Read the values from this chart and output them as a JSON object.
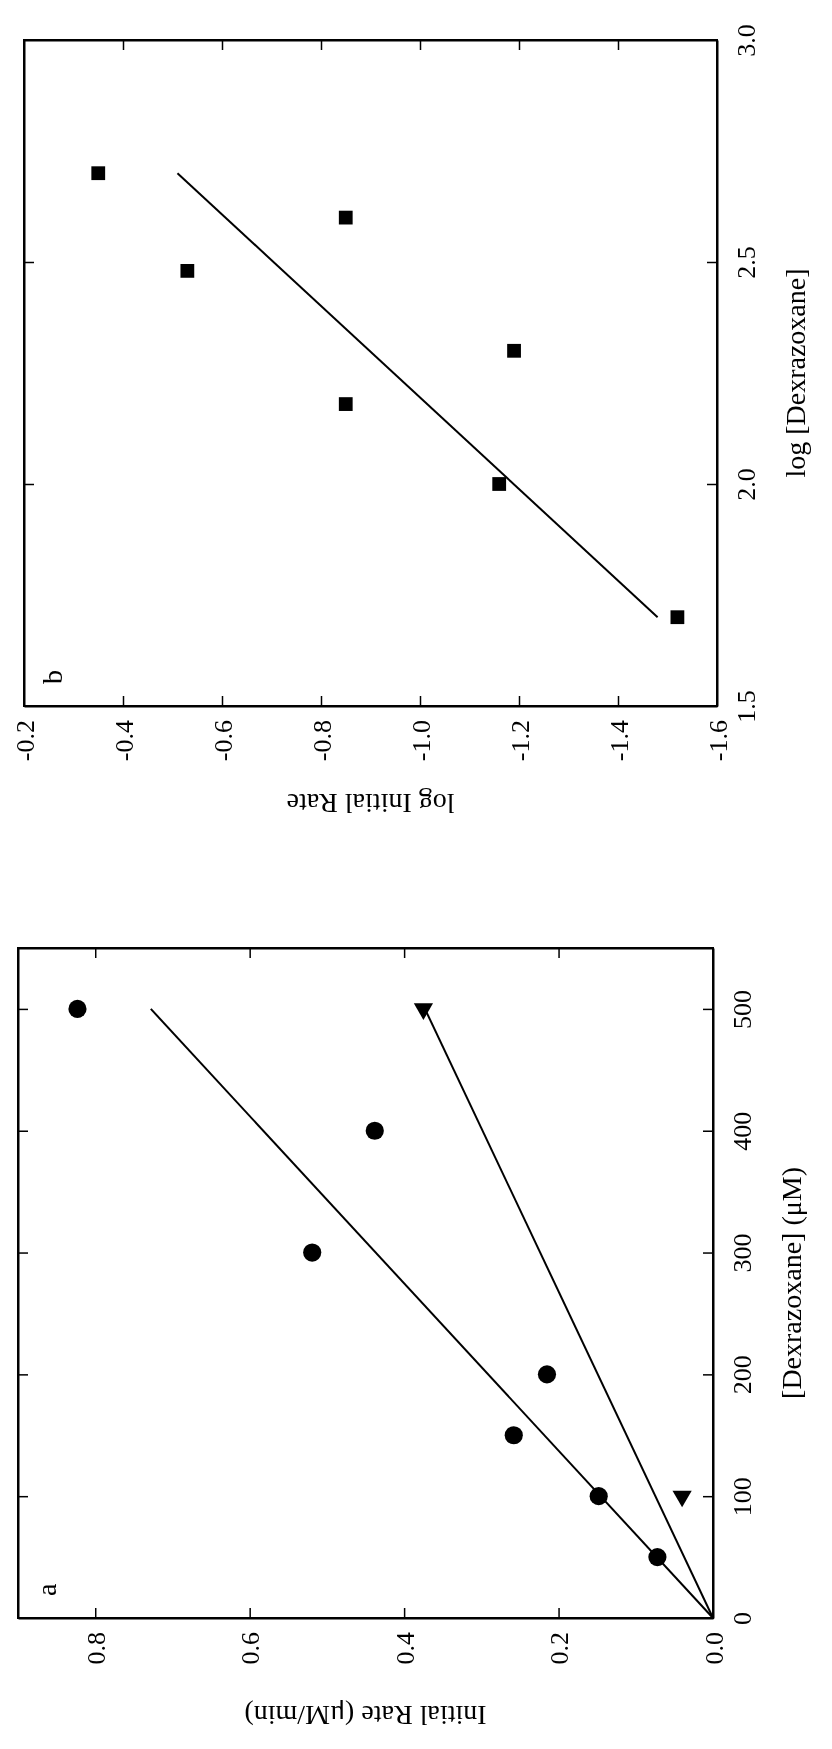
{
  "chart_data": [
    {
      "type": "scatter",
      "xlabel": "Initial Rate  (μM/min)",
      "ylabel": "[Dexrazoxane]  (μM)",
      "xlim": [
        0.9,
        0
      ],
      "xticks": [
        0.8,
        0.6,
        0.4,
        0.2,
        {
          "value": 0,
          "label": "0.0"
        }
      ],
      "ylim": [
        0,
        550
      ],
      "yticks": [
        0,
        100,
        200,
        300,
        400,
        500
      ],
      "grid": false,
      "annotations": [
        "a"
      ],
      "series": [
        {
          "type": "scatter",
          "marker": "circle",
          "color": "#000000",
          "x": [
            0.072,
            0.148,
            0.258,
            0.215,
            0.519,
            0.438,
            0.823
          ],
          "values": [
            50,
            100,
            150,
            200,
            300,
            400,
            500
          ]
        },
        {
          "type": "scatter",
          "marker": "triangle",
          "color": "#000000",
          "x": [
            0.04,
            0.375
          ],
          "values": [
            100,
            500
          ]
        },
        {
          "type": "line",
          "marker": "none",
          "line_style": "solid",
          "color": "#000000",
          "x": [
            0,
            0.728
          ],
          "values": [
            0,
            500
          ]
        },
        {
          "type": "line",
          "marker": "none",
          "line_style": "solid",
          "color": "#000000",
          "x": [
            0,
            0.373
          ],
          "values": [
            0,
            500
          ]
        }
      ]
    },
    {
      "type": "scatter",
      "xlabel": "log Initial Rate",
      "ylabel": "log [Dexrazoxane]",
      "xlim": [
        -0.2,
        -1.6
      ],
      "xticks": [
        -0.2,
        -0.4,
        -0.6,
        -0.8,
        {
          "value": -1,
          "label": "-1.0"
        },
        -1.2,
        -1.4,
        -1.6
      ],
      "ylim": [
        1.5,
        3.0
      ],
      "yticks": [
        1.5,
        {
          "value": 2,
          "label": "2.0"
        },
        2.5,
        {
          "value": 3,
          "label": "3.0"
        }
      ],
      "grid": false,
      "annotations": [
        "b"
      ],
      "series": [
        {
          "type": "scatter",
          "marker": "square",
          "color": "#000000",
          "x": [
            -1.52,
            -1.16,
            -0.85,
            -1.19,
            -0.53,
            -0.85,
            -0.35
          ],
          "values": [
            1.7,
            2.0,
            2.18,
            2.3,
            2.48,
            2.6,
            2.7
          ]
        },
        {
          "type": "line",
          "marker": "none",
          "line_style": "solid",
          "color": "#000000",
          "x": [
            -1.48,
            -0.51
          ],
          "values": [
            1.7,
            2.7
          ]
        }
      ]
    }
  ]
}
